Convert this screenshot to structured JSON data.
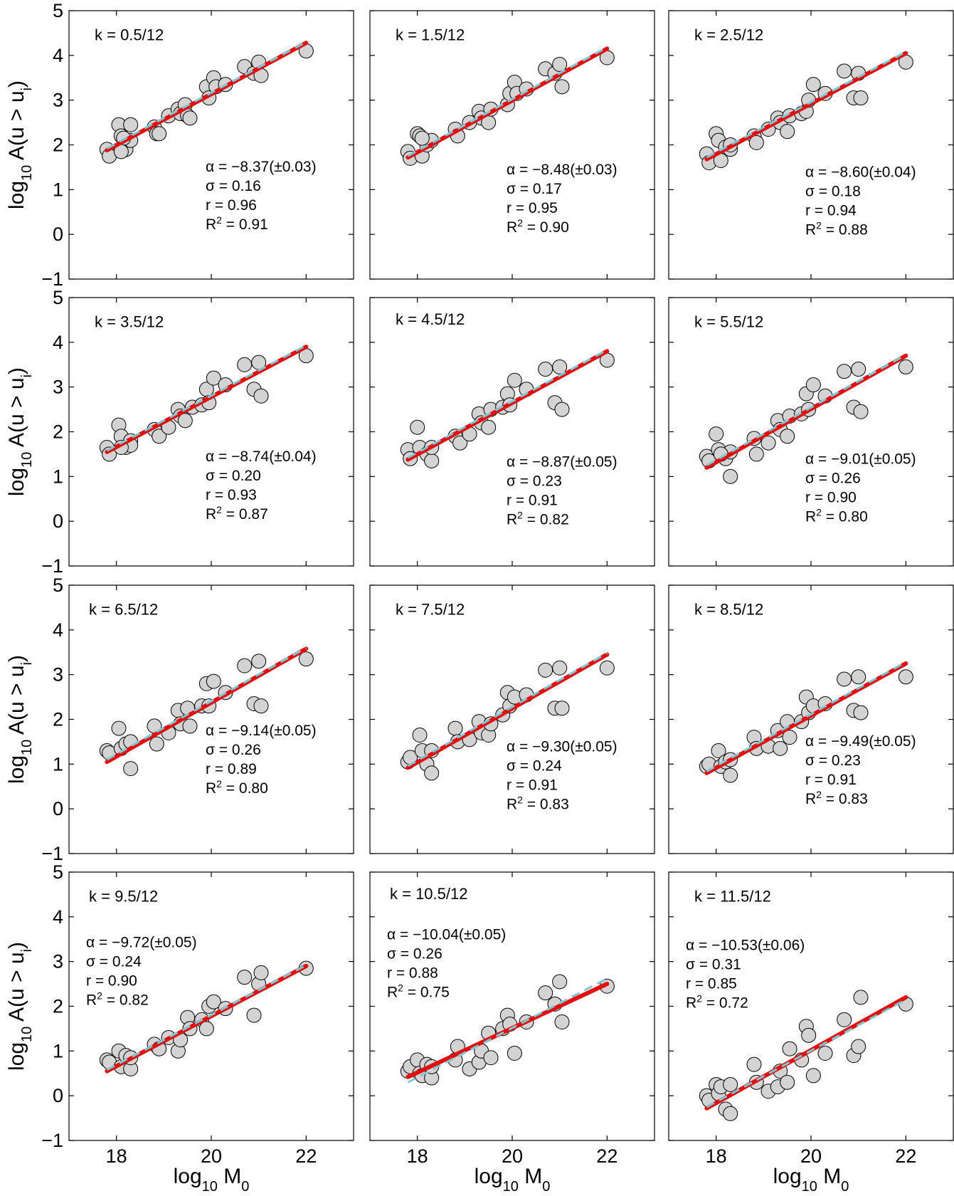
{
  "figure": {
    "ylabel": "log10 A(u > ui)",
    "ylabel_parts": {
      "base": "log",
      "sub1": "10",
      "mid": " A(u > u",
      "sub2": "i",
      "end": ")"
    },
    "xlabel": "log10 M0",
    "xlabel_parts": {
      "base": "log",
      "sub1": "10",
      "mid": " M",
      "sub2": "0"
    },
    "colors": {
      "marker_fill": "#d3d3d3",
      "marker_edge": "#000000",
      "fit_line": "#e01010",
      "reference_line": "#7fc6d4",
      "frame": "#000000"
    }
  },
  "chart_data": [
    {
      "type": "scatter",
      "label": "k = 0.5/12",
      "xlim": [
        17,
        23
      ],
      "ylim": [
        -1,
        5
      ],
      "xticks": [
        18,
        20,
        22
      ],
      "yticks": [
        -1,
        0,
        1,
        2,
        3,
        4,
        5
      ],
      "stats": {
        "alpha": "α = −8.37(±0.03)",
        "sigma": "σ = 0.16",
        "r": "r = 0.96",
        "r2": "R² = 0.91"
      },
      "fit": {
        "x": [
          17.8,
          22
        ],
        "y": [
          1.88,
          4.28
        ]
      },
      "reference": {
        "x": [
          17.8,
          22
        ],
        "y": [
          1.92,
          4.3
        ]
      },
      "points": {
        "x": [
          17.8,
          17.85,
          18.05,
          18.1,
          18.2,
          18.3,
          18.3,
          18.15,
          18.1,
          18.8,
          18.85,
          18.9,
          19.1,
          19.3,
          19.35,
          19.45,
          19.5,
          19.55,
          19.9,
          19.95,
          20.05,
          20.1,
          20.3,
          20.7,
          20.9,
          21.0,
          21.05,
          22.0
        ],
        "y": [
          1.9,
          1.75,
          2.45,
          2.2,
          1.9,
          2.45,
          2.1,
          2.15,
          1.85,
          2.4,
          2.25,
          2.25,
          2.65,
          2.8,
          2.7,
          2.9,
          2.65,
          2.6,
          3.3,
          3.05,
          3.5,
          3.3,
          3.35,
          3.75,
          3.6,
          3.85,
          3.55,
          4.1
        ]
      }
    },
    {
      "type": "scatter",
      "label": "k = 1.5/12",
      "xlim": [
        17,
        23
      ],
      "ylim": [
        -1,
        5
      ],
      "xticks": [
        18,
        20,
        22
      ],
      "yticks": [
        -1,
        0,
        1,
        2,
        3,
        4,
        5
      ],
      "stats": {
        "alpha": "α = −8.48(±0.03)",
        "sigma": "σ = 0.17",
        "r": "r = 0.95",
        "r2": "R² = 0.90"
      },
      "fit": {
        "x": [
          17.8,
          22
        ],
        "y": [
          1.72,
          4.15
        ]
      },
      "reference": {
        "x": [
          17.8,
          22
        ],
        "y": [
          1.75,
          4.18
        ]
      },
      "points": {
        "x": [
          17.8,
          17.85,
          18.0,
          18.05,
          18.1,
          18.2,
          18.3,
          18.1,
          18.8,
          18.85,
          19.1,
          19.3,
          19.35,
          19.5,
          19.55,
          19.9,
          19.95,
          20.05,
          20.1,
          20.3,
          20.7,
          20.9,
          21.0,
          21.05,
          22.0
        ],
        "y": [
          1.85,
          1.7,
          2.25,
          2.2,
          1.75,
          2.0,
          2.1,
          2.15,
          2.35,
          2.2,
          2.5,
          2.75,
          2.6,
          2.5,
          2.8,
          2.9,
          3.15,
          3.4,
          3.15,
          3.25,
          3.7,
          3.6,
          3.8,
          3.3,
          3.95
        ]
      }
    },
    {
      "type": "scatter",
      "label": "k = 2.5/12",
      "xlim": [
        17,
        23
      ],
      "ylim": [
        -1,
        5
      ],
      "xticks": [
        18,
        20,
        22
      ],
      "yticks": [
        -1,
        0,
        1,
        2,
        3,
        4,
        5
      ],
      "stats": {
        "alpha": "α = −8.60(±0.04)",
        "sigma": "σ = 0.18",
        "r": "r = 0.94",
        "r2": "R² = 0.88"
      },
      "fit": {
        "x": [
          17.8,
          22
        ],
        "y": [
          1.68,
          4.05
        ]
      },
      "reference": {
        "x": [
          17.8,
          22
        ],
        "y": [
          1.72,
          4.08
        ]
      },
      "points": {
        "x": [
          17.8,
          17.85,
          18.0,
          18.05,
          18.1,
          18.2,
          18.3,
          18.3,
          18.8,
          18.85,
          19.1,
          19.3,
          19.35,
          19.5,
          19.55,
          19.8,
          19.9,
          19.95,
          20.05,
          20.3,
          20.7,
          20.9,
          21.0,
          21.05,
          22.0
        ],
        "y": [
          1.8,
          1.6,
          2.25,
          2.1,
          1.65,
          1.95,
          1.9,
          2.0,
          2.2,
          2.05,
          2.35,
          2.6,
          2.5,
          2.3,
          2.65,
          2.7,
          2.75,
          3.0,
          3.35,
          3.15,
          3.65,
          3.05,
          3.6,
          3.05,
          3.85
        ]
      }
    },
    {
      "type": "scatter",
      "label": "k = 3.5/12",
      "xlim": [
        17,
        23
      ],
      "ylim": [
        -1,
        5
      ],
      "xticks": [
        18,
        20,
        22
      ],
      "yticks": [
        -1,
        0,
        1,
        2,
        3,
        4,
        5
      ],
      "stats": {
        "alpha": "α = −8.74(±0.04)",
        "sigma": "σ = 0.20",
        "r": "r = 0.93",
        "r2": "R² = 0.87"
      },
      "fit": {
        "x": [
          17.8,
          22
        ],
        "y": [
          1.55,
          3.9
        ]
      },
      "reference": {
        "x": [
          17.8,
          22
        ],
        "y": [
          1.58,
          3.93
        ]
      },
      "points": {
        "x": [
          17.8,
          17.85,
          18.05,
          18.1,
          18.2,
          18.3,
          18.3,
          18.1,
          18.8,
          18.9,
          19.1,
          19.3,
          19.35,
          19.45,
          19.6,
          19.8,
          19.9,
          19.95,
          20.05,
          20.3,
          20.7,
          20.9,
          21.0,
          21.05,
          22.0
        ],
        "y": [
          1.65,
          1.5,
          2.15,
          1.9,
          1.65,
          1.8,
          1.7,
          1.65,
          2.05,
          1.9,
          2.1,
          2.5,
          2.35,
          2.25,
          2.55,
          2.6,
          2.95,
          2.65,
          3.2,
          3.05,
          3.5,
          2.95,
          3.55,
          2.8,
          3.7
        ]
      }
    },
    {
      "type": "scatter",
      "label": "k = 4.5/12",
      "xlim": [
        17,
        23
      ],
      "ylim": [
        -1,
        5
      ],
      "xticks": [
        18,
        20,
        22
      ],
      "yticks": [
        -1,
        0,
        1,
        2,
        3,
        4,
        5
      ],
      "stats": {
        "alpha": "α = −8.87(±0.05)",
        "sigma": "σ = 0.23",
        "r": "r = 0.91",
        "r2": "R² = 0.82"
      },
      "fit": {
        "x": [
          17.8,
          22
        ],
        "y": [
          1.38,
          3.8
        ]
      },
      "reference": {
        "x": [
          17.8,
          22
        ],
        "y": [
          1.42,
          3.83
        ]
      },
      "points": {
        "x": [
          17.8,
          17.85,
          18.0,
          18.05,
          18.2,
          18.3,
          18.3,
          18.8,
          18.9,
          19.1,
          19.3,
          19.35,
          19.5,
          19.55,
          19.8,
          19.9,
          19.95,
          20.05,
          20.3,
          20.7,
          20.9,
          21.0,
          21.05,
          22.0
        ],
        "y": [
          1.6,
          1.4,
          2.1,
          1.65,
          1.5,
          1.35,
          1.65,
          1.9,
          1.75,
          1.95,
          2.4,
          2.2,
          2.1,
          2.5,
          2.55,
          2.85,
          2.6,
          3.15,
          2.95,
          3.4,
          2.65,
          3.45,
          2.5,
          3.6
        ]
      }
    },
    {
      "type": "scatter",
      "label": "k = 5.5/12",
      "xlim": [
        17,
        23
      ],
      "ylim": [
        -1,
        5
      ],
      "xticks": [
        18,
        20,
        22
      ],
      "yticks": [
        -1,
        0,
        1,
        2,
        3,
        4,
        5
      ],
      "stats": {
        "alpha": "α = −9.01(±0.05)",
        "sigma": "σ = 0.26",
        "r": "r = 0.90",
        "r2": "R² = 0.80"
      },
      "fit": {
        "x": [
          17.8,
          22
        ],
        "y": [
          1.2,
          3.7
        ]
      },
      "reference": {
        "x": [
          17.8,
          22
        ],
        "y": [
          1.25,
          3.72
        ]
      },
      "points": {
        "x": [
          17.8,
          17.85,
          18.0,
          18.05,
          18.2,
          18.3,
          18.3,
          18.1,
          18.8,
          18.85,
          19.1,
          19.3,
          19.35,
          19.5,
          19.55,
          19.8,
          19.9,
          19.95,
          20.05,
          20.3,
          20.7,
          20.9,
          21.0,
          21.05,
          22.0
        ],
        "y": [
          1.45,
          1.35,
          1.95,
          1.6,
          1.4,
          1.55,
          1.0,
          1.5,
          1.85,
          1.5,
          1.75,
          2.25,
          2.05,
          1.9,
          2.35,
          2.4,
          2.85,
          2.5,
          3.05,
          2.8,
          3.35,
          2.55,
          3.4,
          2.45,
          3.45
        ]
      }
    },
    {
      "type": "scatter",
      "label": "k = 6.5/12",
      "xlim": [
        17,
        23
      ],
      "ylim": [
        -1,
        5
      ],
      "xticks": [
        18,
        20,
        22
      ],
      "yticks": [
        -1,
        0,
        1,
        2,
        3,
        4,
        5
      ],
      "stats": {
        "alpha": "α = −9.14(±0.05)",
        "sigma": "σ = 0.26",
        "r": "r = 0.89",
        "r2": "R² = 0.80"
      },
      "fit": {
        "x": [
          17.8,
          22
        ],
        "y": [
          1.05,
          3.58
        ]
      },
      "reference": {
        "x": [
          17.8,
          22
        ],
        "y": [
          1.1,
          3.6
        ]
      },
      "points": {
        "x": [
          17.8,
          17.85,
          18.05,
          18.1,
          18.2,
          18.3,
          18.3,
          18.8,
          18.85,
          19.1,
          19.3,
          19.35,
          19.5,
          19.55,
          19.8,
          19.9,
          19.95,
          20.05,
          20.3,
          20.7,
          20.9,
          21.0,
          21.05,
          22.0
        ],
        "y": [
          1.3,
          1.25,
          1.8,
          1.35,
          1.45,
          0.9,
          1.5,
          1.85,
          1.45,
          1.7,
          2.2,
          1.9,
          2.25,
          1.85,
          2.3,
          2.8,
          2.3,
          2.85,
          2.6,
          3.2,
          2.35,
          3.3,
          2.3,
          3.35
        ]
      }
    },
    {
      "type": "scatter",
      "label": "k = 7.5/12",
      "xlim": [
        17,
        23
      ],
      "ylim": [
        -1,
        5
      ],
      "xticks": [
        18,
        20,
        22
      ],
      "yticks": [
        -1,
        0,
        1,
        2,
        3,
        4,
        5
      ],
      "stats": {
        "alpha": "α = −9.30(±0.05)",
        "sigma": "σ = 0.24",
        "r": "r = 0.91",
        "r2": "R² = 0.83"
      },
      "fit": {
        "x": [
          17.8,
          22
        ],
        "y": [
          0.92,
          3.45
        ]
      },
      "reference": {
        "x": [
          17.8,
          22
        ],
        "y": [
          0.96,
          3.48
        ]
      },
      "points": {
        "x": [
          17.8,
          17.85,
          18.05,
          18.1,
          18.2,
          18.3,
          18.3,
          18.8,
          18.85,
          19.1,
          19.3,
          19.35,
          19.5,
          19.55,
          19.8,
          19.9,
          19.95,
          20.05,
          20.3,
          20.7,
          20.9,
          21.0,
          21.05,
          22.0
        ],
        "y": [
          1.05,
          1.15,
          1.65,
          1.3,
          1.0,
          0.8,
          1.3,
          1.8,
          1.5,
          1.55,
          1.95,
          1.7,
          1.65,
          1.9,
          2.1,
          2.6,
          2.3,
          2.5,
          2.55,
          3.1,
          2.25,
          3.15,
          2.25,
          3.15
        ]
      }
    },
    {
      "type": "scatter",
      "label": "k = 8.5/12",
      "xlim": [
        17,
        23
      ],
      "ylim": [
        -1,
        5
      ],
      "xticks": [
        18,
        20,
        22
      ],
      "yticks": [
        -1,
        0,
        1,
        2,
        3,
        4,
        5
      ],
      "stats": {
        "alpha": "α = −9.49(±0.05)",
        "sigma": "σ = 0.23",
        "r": "r = 0.91",
        "r2": "R² = 0.83"
      },
      "fit": {
        "x": [
          17.8,
          22
        ],
        "y": [
          0.8,
          3.25
        ]
      },
      "reference": {
        "x": [
          17.8,
          22
        ],
        "y": [
          0.84,
          3.28
        ]
      },
      "points": {
        "x": [
          17.8,
          17.85,
          18.05,
          18.1,
          18.2,
          18.3,
          18.3,
          18.8,
          18.85,
          19.1,
          19.3,
          19.35,
          19.5,
          19.55,
          19.8,
          19.9,
          19.95,
          20.05,
          20.3,
          20.7,
          20.9,
          21.0,
          21.05,
          22.0
        ],
        "y": [
          0.95,
          1.0,
          1.3,
          0.95,
          1.05,
          0.75,
          1.1,
          1.6,
          1.35,
          1.4,
          1.75,
          1.35,
          1.95,
          1.6,
          1.95,
          2.5,
          2.15,
          2.3,
          2.35,
          2.9,
          2.2,
          2.95,
          2.15,
          2.95
        ]
      }
    },
    {
      "type": "scatter",
      "label": "k = 9.5/12",
      "xlim": [
        17,
        23
      ],
      "ylim": [
        -1,
        5
      ],
      "xticks": [
        18,
        20,
        22
      ],
      "yticks": [
        -1,
        0,
        1,
        2,
        3,
        4,
        5
      ],
      "stats": {
        "alpha": "α = −9.72(±0.05)",
        "sigma": "σ = 0.24",
        "r": "r = 0.90",
        "r2": "R² = 0.82"
      },
      "fit": {
        "x": [
          17.8,
          22
        ],
        "y": [
          0.55,
          2.9
        ]
      },
      "reference": {
        "x": [
          17.8,
          22
        ],
        "y": [
          0.58,
          2.92
        ]
      },
      "points": {
        "x": [
          17.8,
          17.85,
          18.05,
          18.1,
          18.2,
          18.3,
          18.3,
          18.8,
          18.9,
          19.1,
          19.3,
          19.35,
          19.5,
          19.55,
          19.8,
          19.9,
          19.95,
          20.05,
          20.3,
          20.7,
          20.9,
          21.0,
          21.05,
          22.0
        ],
        "y": [
          0.8,
          0.75,
          1.0,
          0.65,
          0.9,
          0.6,
          0.85,
          1.15,
          1.05,
          1.3,
          1.0,
          1.25,
          1.75,
          1.5,
          1.7,
          1.5,
          2.0,
          2.1,
          1.95,
          2.65,
          1.8,
          2.5,
          2.75,
          2.85
        ]
      }
    },
    {
      "type": "scatter",
      "label": "k = 10.5/12",
      "xlim": [
        17,
        23
      ],
      "ylim": [
        -1,
        5
      ],
      "xticks": [
        18,
        20,
        22
      ],
      "yticks": [
        -1,
        0,
        1,
        2,
        3,
        4,
        5
      ],
      "stats": {
        "alpha": "α = −10.04(±0.05)",
        "sigma": "σ = 0.26",
        "r": "r = 0.88",
        "r2": "R² = 0.75"
      },
      "fit": {
        "x": [
          17.8,
          22
        ],
        "y": [
          0.42,
          2.5
        ]
      },
      "reference": {
        "x": [
          17.8,
          22
        ],
        "y": [
          0.3,
          2.62
        ]
      },
      "points": {
        "x": [
          17.8,
          17.85,
          18.0,
          18.05,
          18.1,
          18.2,
          18.3,
          18.3,
          18.8,
          18.85,
          19.1,
          19.3,
          19.35,
          19.5,
          19.55,
          19.8,
          19.9,
          19.95,
          20.05,
          20.3,
          20.7,
          20.9,
          21.0,
          21.05,
          22.0
        ],
        "y": [
          0.55,
          0.65,
          0.8,
          0.5,
          0.45,
          0.7,
          0.4,
          0.65,
          0.8,
          1.1,
          0.6,
          0.75,
          1.0,
          1.4,
          0.85,
          1.5,
          1.8,
          1.6,
          0.95,
          1.65,
          2.3,
          2.05,
          2.55,
          1.65,
          2.45
        ]
      }
    },
    {
      "type": "scatter",
      "label": "k = 11.5/12",
      "xlim": [
        17,
        23
      ],
      "ylim": [
        -1,
        5
      ],
      "xticks": [
        18,
        20,
        22
      ],
      "yticks": [
        -1,
        0,
        1,
        2,
        3,
        4,
        5
      ],
      "stats": {
        "alpha": "α = −10.53(±0.06)",
        "sigma": "σ = 0.31",
        "r": "r = 0.85",
        "r2": "R² = 0.72"
      },
      "fit": {
        "x": [
          17.8,
          22
        ],
        "y": [
          -0.28,
          2.2
        ]
      },
      "reference": {
        "x": [
          17.8,
          22
        ],
        "y": [
          -0.25,
          2.15
        ]
      },
      "points": {
        "x": [
          17.8,
          17.85,
          18.0,
          18.05,
          18.1,
          18.2,
          18.3,
          18.3,
          18.8,
          18.85,
          19.1,
          19.3,
          19.35,
          19.5,
          19.55,
          19.8,
          19.9,
          19.95,
          20.05,
          20.3,
          20.7,
          20.9,
          21.0,
          21.05,
          22.0
        ],
        "y": [
          0.0,
          -0.1,
          0.25,
          0.05,
          0.2,
          -0.3,
          0.25,
          -0.4,
          0.7,
          0.3,
          0.1,
          0.2,
          0.55,
          0.3,
          1.05,
          0.8,
          1.55,
          1.35,
          0.45,
          0.95,
          1.7,
          0.9,
          1.1,
          2.2,
          2.05
        ]
      }
    }
  ]
}
